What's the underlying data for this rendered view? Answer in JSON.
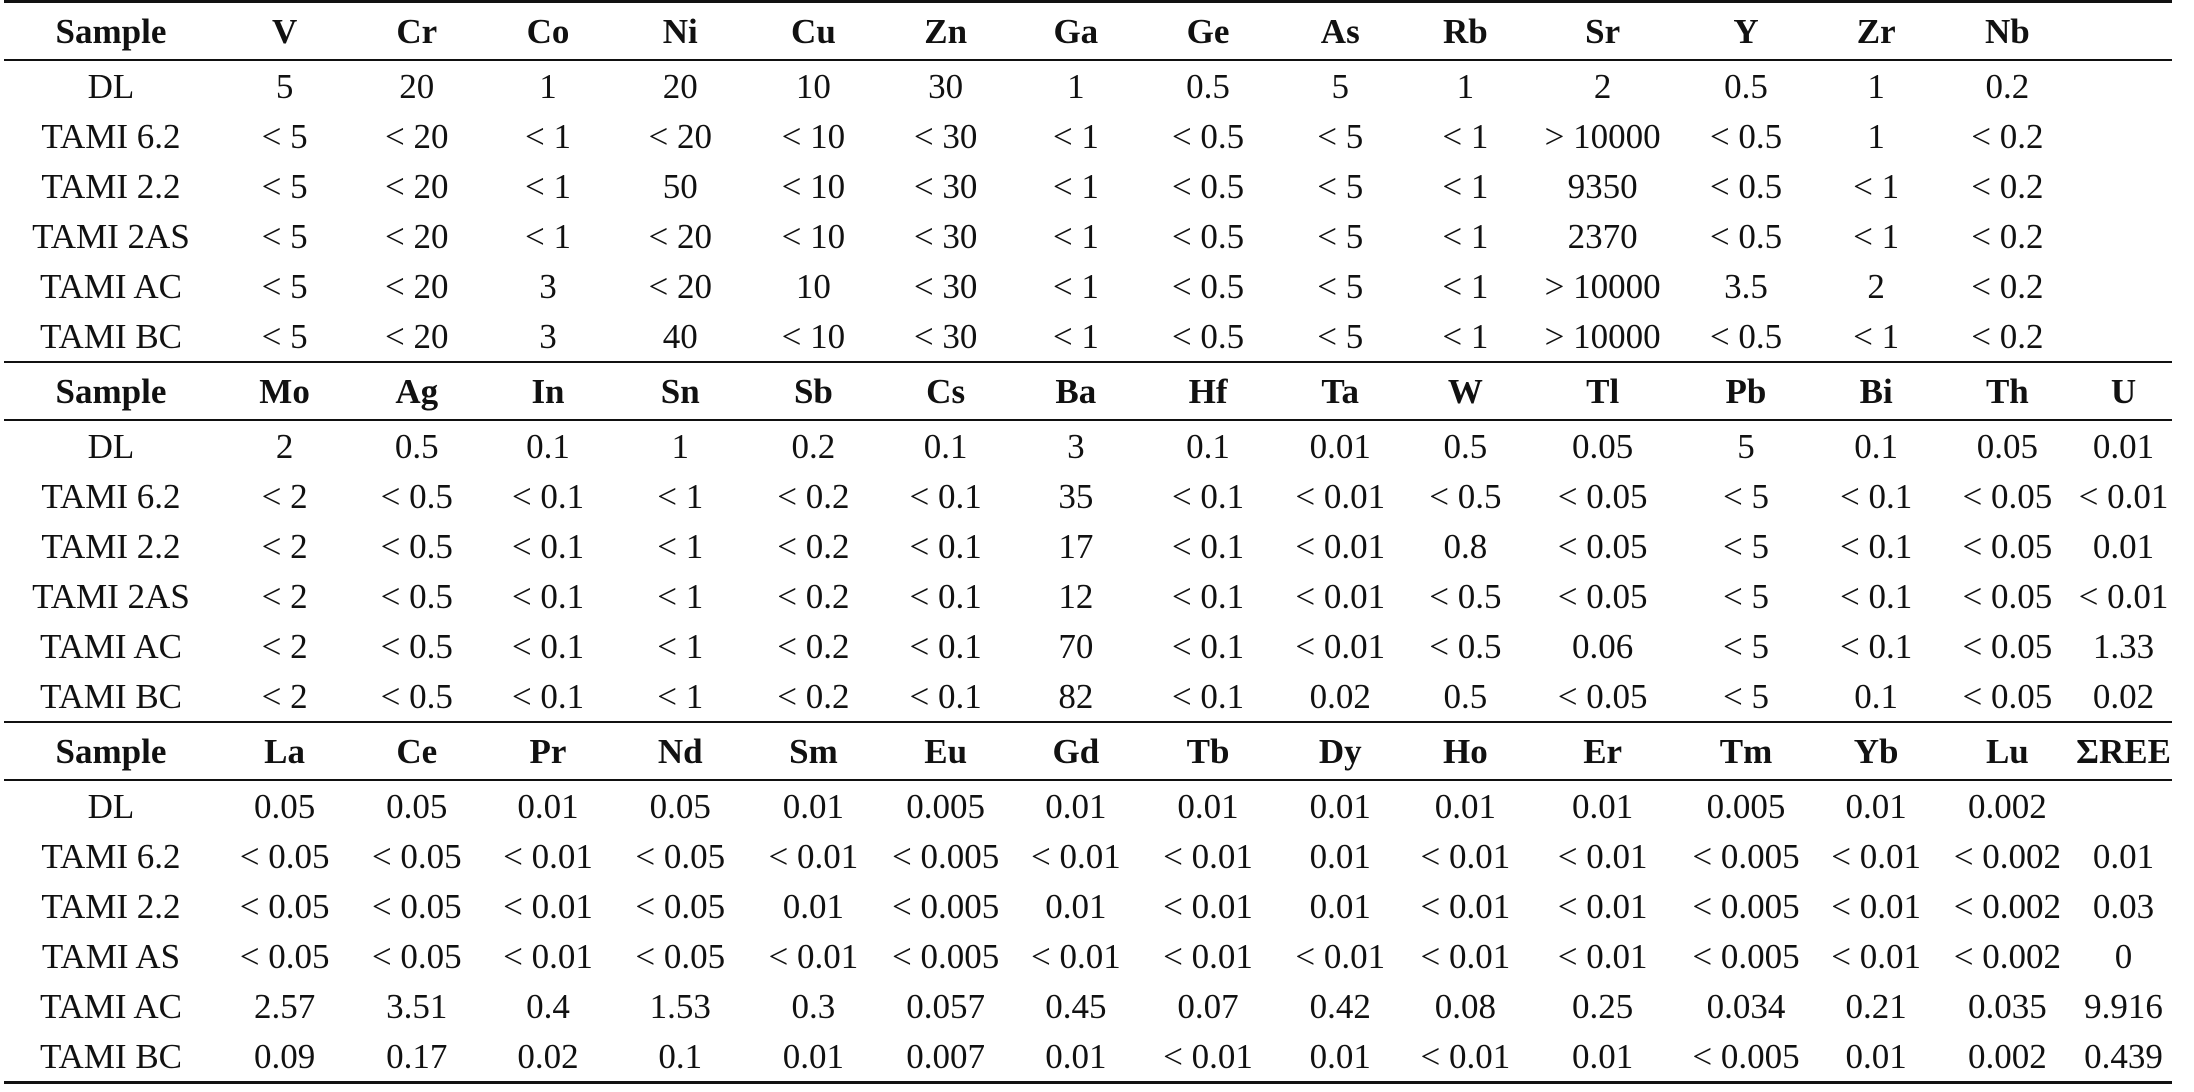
{
  "table": {
    "blocks": [
      {
        "header": [
          "Sample",
          "V",
          "Cr",
          "Co",
          "Ni",
          "Cu",
          "Zn",
          "Ga",
          "Ge",
          "As",
          "Rb",
          "Sr",
          "Y",
          "Zr",
          "Nb",
          ""
        ],
        "rows": [
          [
            "DL",
            "5",
            "20",
            "1",
            "20",
            "10",
            "30",
            "1",
            "0.5",
            "5",
            "1",
            "2",
            "0.5",
            "1",
            "0.2",
            ""
          ],
          [
            "TAMI 6.2",
            "< 5",
            "< 20",
            "< 1",
            "< 20",
            "< 10",
            "< 30",
            "< 1",
            "< 0.5",
            "< 5",
            "< 1",
            "> 10000",
            "< 0.5",
            "1",
            "< 0.2",
            ""
          ],
          [
            "TAMI 2.2",
            "< 5",
            "< 20",
            "< 1",
            "50",
            "< 10",
            "< 30",
            "< 1",
            "< 0.5",
            "< 5",
            "< 1",
            "9350",
            "< 0.5",
            "< 1",
            "< 0.2",
            ""
          ],
          [
            "TAMI 2AS",
            "< 5",
            "< 20",
            "< 1",
            "< 20",
            "< 10",
            "< 30",
            "< 1",
            "< 0.5",
            "< 5",
            "< 1",
            "2370",
            "< 0.5",
            "< 1",
            "< 0.2",
            ""
          ],
          [
            "TAMI AC",
            "< 5",
            "< 20",
            "3",
            "< 20",
            "10",
            "< 30",
            "< 1",
            "< 0.5",
            "< 5",
            "< 1",
            "> 10000",
            "3.5",
            "2",
            "< 0.2",
            ""
          ],
          [
            "TAMI BC",
            "< 5",
            "< 20",
            "3",
            "40",
            "< 10",
            "< 30",
            "< 1",
            "< 0.5",
            "< 5",
            "< 1",
            "> 10000",
            "< 0.5",
            "< 1",
            "< 0.2",
            ""
          ]
        ]
      },
      {
        "header": [
          "Sample",
          "Mo",
          "Ag",
          "In",
          "Sn",
          "Sb",
          "Cs",
          "Ba",
          "Hf",
          "Ta",
          "W",
          "Tl",
          "Pb",
          "Bi",
          "Th",
          "U"
        ],
        "rows": [
          [
            "DL",
            "2",
            "0.5",
            "0.1",
            "1",
            "0.2",
            "0.1",
            "3",
            "0.1",
            "0.01",
            "0.5",
            "0.05",
            "5",
            "0.1",
            "0.05",
            "0.01"
          ],
          [
            "TAMI 6.2",
            "< 2",
            "< 0.5",
            "< 0.1",
            "< 1",
            "< 0.2",
            "< 0.1",
            "35",
            "< 0.1",
            "< 0.01",
            "< 0.5",
            "< 0.05",
            "< 5",
            "< 0.1",
            "< 0.05",
            "< 0.01"
          ],
          [
            "TAMI 2.2",
            "< 2",
            "< 0.5",
            "< 0.1",
            "< 1",
            "< 0.2",
            "< 0.1",
            "17",
            "< 0.1",
            "< 0.01",
            "0.8",
            "< 0.05",
            "< 5",
            "< 0.1",
            "< 0.05",
            "0.01"
          ],
          [
            "TAMI 2AS",
            "< 2",
            "< 0.5",
            "< 0.1",
            "< 1",
            "< 0.2",
            "< 0.1",
            "12",
            "< 0.1",
            "< 0.01",
            "< 0.5",
            "< 0.05",
            "< 5",
            "< 0.1",
            "< 0.05",
            "< 0.01"
          ],
          [
            "TAMI AC",
            "< 2",
            "< 0.5",
            "< 0.1",
            "< 1",
            "< 0.2",
            "< 0.1",
            "70",
            "< 0.1",
            "< 0.01",
            "< 0.5",
            "0.06",
            "< 5",
            "< 0.1",
            "< 0.05",
            "1.33"
          ],
          [
            "TAMI BC",
            "< 2",
            "< 0.5",
            "< 0.1",
            "< 1",
            "< 0.2",
            "< 0.1",
            "82",
            "< 0.1",
            "0.02",
            "0.5",
            "< 0.05",
            "< 5",
            "0.1",
            "< 0.05",
            "0.02"
          ]
        ]
      },
      {
        "header": [
          "Sample",
          "La",
          "Ce",
          "Pr",
          "Nd",
          "Sm",
          "Eu",
          "Gd",
          "Tb",
          "Dy",
          "Ho",
          "Er",
          "Tm",
          "Yb",
          "Lu",
          "ΣREE"
        ],
        "rows": [
          [
            "DL",
            "0.05",
            "0.05",
            "0.01",
            "0.05",
            "0.01",
            "0.005",
            "0.01",
            "0.01",
            "0.01",
            "0.01",
            "0.01",
            "0.005",
            "0.01",
            "0.002",
            ""
          ],
          [
            "TAMI 6.2",
            "< 0.05",
            "< 0.05",
            "< 0.01",
            "< 0.05",
            "< 0.01",
            "< 0.005",
            "< 0.01",
            "< 0.01",
            "0.01",
            "< 0.01",
            "< 0.01",
            "< 0.005",
            "< 0.01",
            "< 0.002",
            "0.01"
          ],
          [
            "TAMI 2.2",
            "< 0.05",
            "< 0.05",
            "< 0.01",
            "< 0.05",
            "0.01",
            "< 0.005",
            "0.01",
            "< 0.01",
            "0.01",
            "< 0.01",
            "< 0.01",
            "< 0.005",
            "< 0.01",
            "< 0.002",
            "0.03"
          ],
          [
            "TAMI AS",
            "< 0.05",
            "< 0.05",
            "< 0.01",
            "< 0.05",
            "< 0.01",
            "< 0.005",
            "< 0.01",
            "< 0.01",
            "< 0.01",
            "< 0.01",
            "< 0.01",
            "< 0.005",
            "< 0.01",
            "< 0.002",
            "0"
          ],
          [
            "TAMI AC",
            "2.57",
            "3.51",
            "0.4",
            "1.53",
            "0.3",
            "0.057",
            "0.45",
            "0.07",
            "0.42",
            "0.08",
            "0.25",
            "0.034",
            "0.21",
            "0.035",
            "9.916"
          ],
          [
            "TAMI BC",
            "0.09",
            "0.17",
            "0.02",
            "0.1",
            "0.01",
            "0.007",
            "0.01",
            "< 0.01",
            "0.01",
            "< 0.01",
            "0.01",
            "< 0.005",
            "0.01",
            "0.002",
            "0.439"
          ]
        ]
      }
    ]
  }
}
